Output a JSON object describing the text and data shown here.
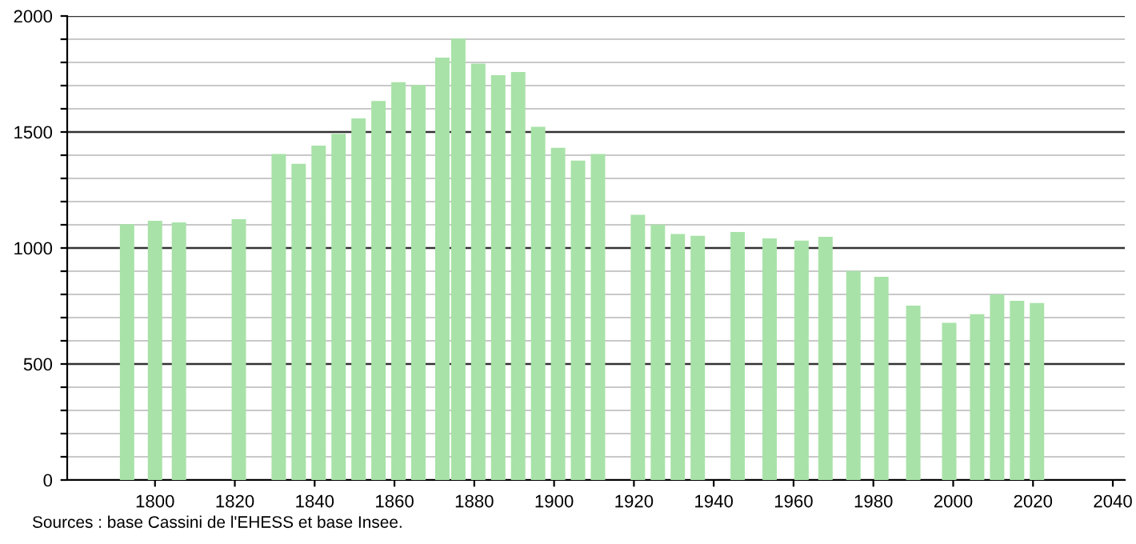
{
  "chart_data": {
    "type": "bar",
    "x": [
      1793,
      1800,
      1806,
      1821,
      1831,
      1836,
      1841,
      1846,
      1851,
      1856,
      1861,
      1866,
      1872,
      1876,
      1881,
      1886,
      1891,
      1896,
      1901,
      1906,
      1911,
      1921,
      1926,
      1931,
      1936,
      1946,
      1954,
      1962,
      1968,
      1975,
      1982,
      1990,
      1999,
      2006,
      2011,
      2016,
      2021
    ],
    "values": [
      1103,
      1117,
      1110,
      1124,
      1405,
      1363,
      1441,
      1492,
      1559,
      1634,
      1715,
      1703,
      1821,
      1903,
      1795,
      1745,
      1759,
      1522,
      1432,
      1377,
      1405,
      1143,
      1101,
      1060,
      1053,
      1069,
      1041,
      1032,
      1048,
      901,
      876,
      752,
      678,
      715,
      800,
      772,
      763
    ],
    "color": "#a8e2a8",
    "xlim": [
      1778,
      2043
    ],
    "xticks": [
      1800,
      1820,
      1840,
      1860,
      1880,
      1900,
      1920,
      1940,
      1960,
      1980,
      2000,
      2020,
      2040
    ],
    "ylim": [
      0,
      2000
    ],
    "yticks": [
      0,
      {
        "value": 100,
        "label": null
      },
      {
        "value": 200,
        "label": null
      },
      {
        "value": 300,
        "label": null
      },
      {
        "value": 400,
        "label": null
      },
      500,
      {
        "value": 600,
        "label": null
      },
      {
        "value": 700,
        "label": null
      },
      {
        "value": 800,
        "label": null
      },
      {
        "value": 900,
        "label": null
      },
      1000,
      {
        "value": 1100,
        "label": null
      },
      {
        "value": 1200,
        "label": null
      },
      {
        "value": 1300,
        "label": null
      },
      {
        "value": 1400,
        "label": null
      },
      1500,
      {
        "value": 1600,
        "label": null
      },
      {
        "value": 1700,
        "label": null
      },
      {
        "value": 1800,
        "label": null
      },
      {
        "value": 1900,
        "label": null
      },
      2000
    ],
    "grid": "y",
    "annotations": [
      "Sources : base Cassini de l'EHESS et base Insee."
    ]
  }
}
